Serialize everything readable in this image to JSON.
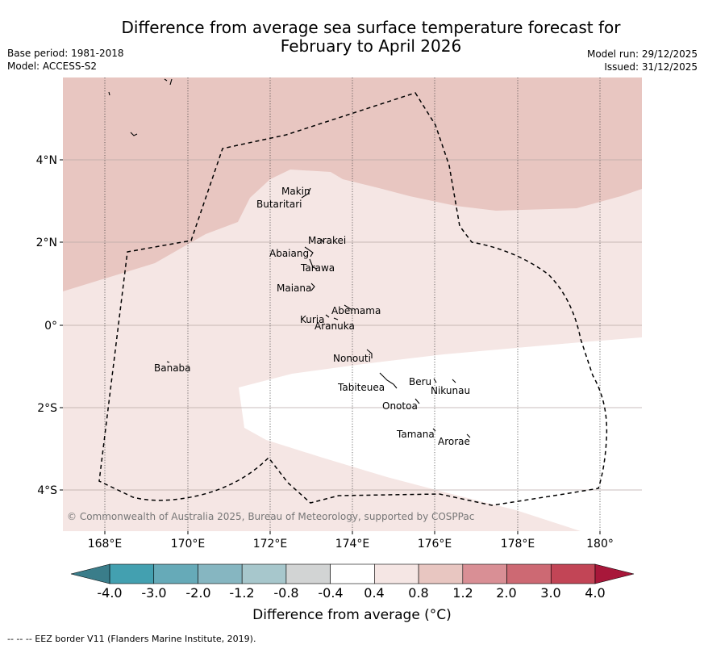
{
  "title_line1": "Difference from average sea surface temperature forecast for",
  "title_line2": "February to April 2026",
  "base_period": "Base period: 1981-2018",
  "model": "Model: ACCESS-S2",
  "model_run": "Model run: 29/12/2025",
  "issued": "Issued: 31/12/2025",
  "copyright": "© Commonwealth of Australia 2025, Bureau of Meteorology, supported by COSPPac",
  "footnote": "--  --  -- EEZ border V11 (Flanders Marine Institute, 2019).",
  "colorbar_label": "Difference from average (°C)",
  "colorbar_ticks": [
    "-4.0",
    "-3.0",
    "-2.0",
    "-1.2",
    "-0.8",
    "-0.4",
    "0.4",
    "0.8",
    "1.2",
    "2.0",
    "3.0",
    "4.0"
  ],
  "colorbar_colors": [
    "#43a0b0",
    "#66aab8",
    "#86b6c1",
    "#a7c7cc",
    "#d2d4d4",
    "#ffffff",
    "#f5e6e4",
    "#e8c6c1",
    "#d98f95",
    "#cd6973",
    "#c24556"
  ],
  "colorbar_under": "#3a7d8a",
  "colorbar_over": "#a8173a",
  "x_ticks": [
    "168°E",
    "170°E",
    "172°E",
    "174°E",
    "176°E",
    "178°E",
    "180°"
  ],
  "y_ticks": [
    "4°N",
    "2°N",
    "0°",
    "2°S",
    "4°S"
  ],
  "places": [
    "Makin",
    "Butaritari",
    "Marakei",
    "Abaiang",
    "Tarawa",
    "Maiana",
    "Abemama",
    "Kuria",
    "Aranuka",
    "Nonouti",
    "Banaba",
    "Tabiteuea",
    "Beru",
    "Nikunau",
    "Onotoa",
    "Tamana",
    "Arorae"
  ]
}
